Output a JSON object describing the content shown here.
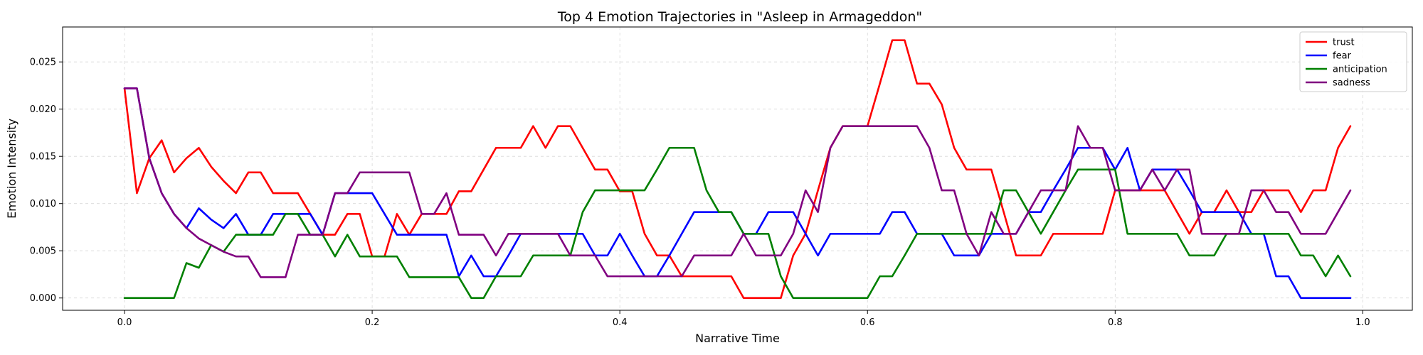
{
  "chart_data": {
    "type": "line",
    "title": "Top 4 Emotion Trajectories in \"Asleep in Armageddon\"",
    "xlabel": "Narrative Time",
    "ylabel": "Emotion Intensity",
    "xlim": [
      -0.05,
      1.04
    ],
    "ylim": [
      -0.0013,
      0.0287
    ],
    "xticks": [
      0.0,
      0.2,
      0.4,
      0.6,
      0.8,
      1.0
    ],
    "xtick_labels": [
      "0.0",
      "0.2",
      "0.4",
      "0.6",
      "0.8",
      "1.0"
    ],
    "yticks": [
      0.0,
      0.005,
      0.01,
      0.015,
      0.02,
      0.025
    ],
    "ytick_labels": [
      "0.000",
      "0.005",
      "0.010",
      "0.015",
      "0.020",
      "0.025"
    ],
    "grid": true,
    "legend_position": "top-right",
    "x_start": 0.0,
    "x_step": 0.01,
    "series": [
      {
        "name": "trust",
        "color": "#ff0000",
        "values": [
          0.0222,
          0.0111,
          0.0148,
          0.0167,
          0.0133,
          0.0148,
          0.0159,
          0.0139,
          0.0124,
          0.0111,
          0.0133,
          0.0133,
          0.0111,
          0.0111,
          0.0111,
          0.0089,
          0.0067,
          0.0067,
          0.0089,
          0.0089,
          0.0044,
          0.0044,
          0.0089,
          0.0067,
          0.0089,
          0.0089,
          0.0089,
          0.0113,
          0.0113,
          0.0136,
          0.0159,
          0.0159,
          0.0159,
          0.0182,
          0.0159,
          0.0182,
          0.0182,
          0.0159,
          0.0136,
          0.0136,
          0.0113,
          0.0113,
          0.0068,
          0.0045,
          0.0045,
          0.0023,
          0.0023,
          0.0023,
          0.0023,
          0.0023,
          0.0,
          0.0,
          0.0,
          0.0,
          0.0045,
          0.0068,
          0.0114,
          0.0159,
          0.0182,
          0.0182,
          0.0182,
          0.0227,
          0.0273,
          0.0273,
          0.0227,
          0.0227,
          0.0205,
          0.0159,
          0.0136,
          0.0136,
          0.0136,
          0.0091,
          0.0045,
          0.0045,
          0.0045,
          0.0068,
          0.0068,
          0.0068,
          0.0068,
          0.0068,
          0.0114,
          0.0114,
          0.0114,
          0.0114,
          0.0114,
          0.0091,
          0.0068,
          0.0091,
          0.0091,
          0.0114,
          0.0091,
          0.0091,
          0.0114,
          0.0114,
          0.0114,
          0.0091,
          0.0114,
          0.0114,
          0.0159,
          0.0182
        ]
      },
      {
        "name": "fear",
        "color": "#0000ff",
        "values": [
          0.0222,
          0.0222,
          0.0148,
          0.0111,
          0.0089,
          0.0074,
          0.0095,
          0.0083,
          0.0074,
          0.0089,
          0.0067,
          0.0067,
          0.0089,
          0.0089,
          0.0089,
          0.0089,
          0.0067,
          0.0111,
          0.0111,
          0.0111,
          0.0111,
          0.0089,
          0.0067,
          0.0067,
          0.0067,
          0.0067,
          0.0067,
          0.0023,
          0.0045,
          0.0023,
          0.0023,
          0.0045,
          0.0068,
          0.0068,
          0.0068,
          0.0068,
          0.0068,
          0.0068,
          0.0045,
          0.0045,
          0.0068,
          0.0045,
          0.0023,
          0.0023,
          0.0045,
          0.0068,
          0.0091,
          0.0091,
          0.0091,
          0.0091,
          0.0068,
          0.0068,
          0.0091,
          0.0091,
          0.0091,
          0.0068,
          0.0045,
          0.0068,
          0.0068,
          0.0068,
          0.0068,
          0.0068,
          0.0091,
          0.0091,
          0.0068,
          0.0068,
          0.0068,
          0.0045,
          0.0045,
          0.0045,
          0.0068,
          0.0068,
          0.0068,
          0.0091,
          0.0091,
          0.0114,
          0.0136,
          0.0159,
          0.0159,
          0.0159,
          0.0136,
          0.0159,
          0.0114,
          0.0136,
          0.0136,
          0.0136,
          0.0114,
          0.0091,
          0.0091,
          0.0091,
          0.0091,
          0.0068,
          0.0068,
          0.0023,
          0.0023,
          0.0,
          0.0,
          0.0,
          0.0,
          0.0
        ]
      },
      {
        "name": "anticipation",
        "color": "#008000",
        "values": [
          0.0,
          0.0,
          0.0,
          0.0,
          0.0,
          0.0037,
          0.0032,
          0.0056,
          0.0049,
          0.0067,
          0.0067,
          0.0067,
          0.0067,
          0.0089,
          0.0089,
          0.0067,
          0.0067,
          0.0044,
          0.0067,
          0.0044,
          0.0044,
          0.0044,
          0.0044,
          0.0022,
          0.0022,
          0.0022,
          0.0022,
          0.0022,
          0.0,
          0.0,
          0.0023,
          0.0023,
          0.0023,
          0.0045,
          0.0045,
          0.0045,
          0.0045,
          0.0091,
          0.0114,
          0.0114,
          0.0114,
          0.0114,
          0.0114,
          0.0136,
          0.0159,
          0.0159,
          0.0159,
          0.0114,
          0.0091,
          0.0091,
          0.0068,
          0.0068,
          0.0068,
          0.0023,
          0.0,
          0.0,
          0.0,
          0.0,
          0.0,
          0.0,
          0.0,
          0.0023,
          0.0023,
          0.0045,
          0.0068,
          0.0068,
          0.0068,
          0.0068,
          0.0068,
          0.0068,
          0.0068,
          0.0114,
          0.0114,
          0.0091,
          0.0068,
          0.0091,
          0.0114,
          0.0136,
          0.0136,
          0.0136,
          0.0136,
          0.0068,
          0.0068,
          0.0068,
          0.0068,
          0.0068,
          0.0045,
          0.0045,
          0.0045,
          0.0068,
          0.0068,
          0.0068,
          0.0068,
          0.0068,
          0.0068,
          0.0045,
          0.0045,
          0.0023,
          0.0045,
          0.0023
        ]
      },
      {
        "name": "sadness",
        "color": "#800080",
        "values": [
          0.0222,
          0.0222,
          0.0148,
          0.0111,
          0.0089,
          0.0074,
          0.0063,
          0.0056,
          0.0049,
          0.0044,
          0.0044,
          0.0022,
          0.0022,
          0.0022,
          0.0067,
          0.0067,
          0.0067,
          0.0111,
          0.0111,
          0.0133,
          0.0133,
          0.0133,
          0.0133,
          0.0133,
          0.0089,
          0.0089,
          0.0111,
          0.0067,
          0.0067,
          0.0067,
          0.0045,
          0.0068,
          0.0068,
          0.0068,
          0.0068,
          0.0068,
          0.0045,
          0.0045,
          0.0045,
          0.0023,
          0.0023,
          0.0023,
          0.0023,
          0.0023,
          0.0023,
          0.0023,
          0.0045,
          0.0045,
          0.0045,
          0.0045,
          0.0068,
          0.0045,
          0.0045,
          0.0045,
          0.0068,
          0.0114,
          0.0091,
          0.0159,
          0.0182,
          0.0182,
          0.0182,
          0.0182,
          0.0182,
          0.0182,
          0.0182,
          0.0159,
          0.0114,
          0.0114,
          0.0068,
          0.0045,
          0.0091,
          0.0068,
          0.0068,
          0.0091,
          0.0114,
          0.0114,
          0.0114,
          0.0182,
          0.0159,
          0.0159,
          0.0114,
          0.0114,
          0.0114,
          0.0136,
          0.0114,
          0.0136,
          0.0136,
          0.0068,
          0.0068,
          0.0068,
          0.0068,
          0.0114,
          0.0114,
          0.0091,
          0.0091,
          0.0068,
          0.0068,
          0.0068,
          0.0091,
          0.0114
        ]
      }
    ]
  }
}
